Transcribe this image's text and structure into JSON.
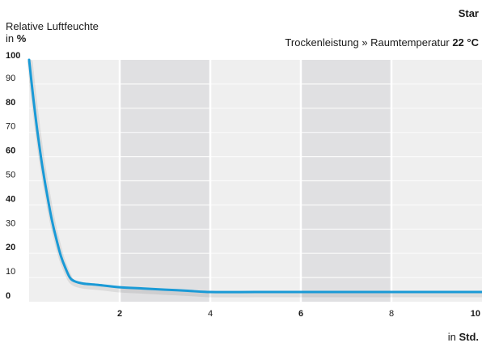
{
  "chart_data": {
    "type": "line",
    "title": "Star",
    "subtitle": {
      "text": "Trockenleistung » Raumtemperatur",
      "value": "22 °C"
    },
    "ylabel": {
      "line1": "Relative Luftfeuchte",
      "prefix": "in",
      "unit": "%"
    },
    "xlabel": {
      "prefix": "in",
      "unit": "Std."
    },
    "xlim": [
      0,
      10
    ],
    "ylim": [
      0,
      100
    ],
    "x_ticks": [
      {
        "value": 2,
        "label": "2",
        "bold": true
      },
      {
        "value": 4,
        "label": "4",
        "bold": false
      },
      {
        "value": 6,
        "label": "6",
        "bold": true
      },
      {
        "value": 8,
        "label": "8",
        "bold": false
      },
      {
        "value": 10,
        "label": "10",
        "bold": true
      }
    ],
    "y_ticks": [
      {
        "value": 0,
        "label": "0",
        "bold": true
      },
      {
        "value": 10,
        "label": "10",
        "bold": false
      },
      {
        "value": 20,
        "label": "20",
        "bold": true
      },
      {
        "value": 30,
        "label": "30",
        "bold": false
      },
      {
        "value": 40,
        "label": "40",
        "bold": true
      },
      {
        "value": 50,
        "label": "50",
        "bold": false
      },
      {
        "value": 60,
        "label": "60",
        "bold": true
      },
      {
        "value": 70,
        "label": "70",
        "bold": false
      },
      {
        "value": 80,
        "label": "80",
        "bold": true
      },
      {
        "value": 90,
        "label": "90",
        "bold": false
      },
      {
        "value": 100,
        "label": "100",
        "bold": true
      }
    ],
    "shaded_bands": [
      [
        2,
        4
      ],
      [
        6,
        8
      ]
    ],
    "grid": true,
    "series": [
      {
        "color": "#1a9ad6",
        "x": [
          0,
          0.1,
          0.2,
          0.3,
          0.4,
          0.5,
          0.6,
          0.7,
          0.8,
          0.9,
          1.0,
          1.2,
          1.5,
          2.0,
          2.5,
          3.0,
          3.5,
          4.0,
          5.0,
          6.0,
          7.0,
          8.0,
          9.0,
          10.0
        ],
        "y": [
          100,
          83,
          68,
          55,
          44,
          34,
          26,
          19,
          14,
          10,
          8.5,
          7.5,
          7,
          6,
          5.5,
          5,
          4.5,
          4,
          4,
          4,
          4,
          4,
          4,
          4
        ]
      }
    ]
  }
}
